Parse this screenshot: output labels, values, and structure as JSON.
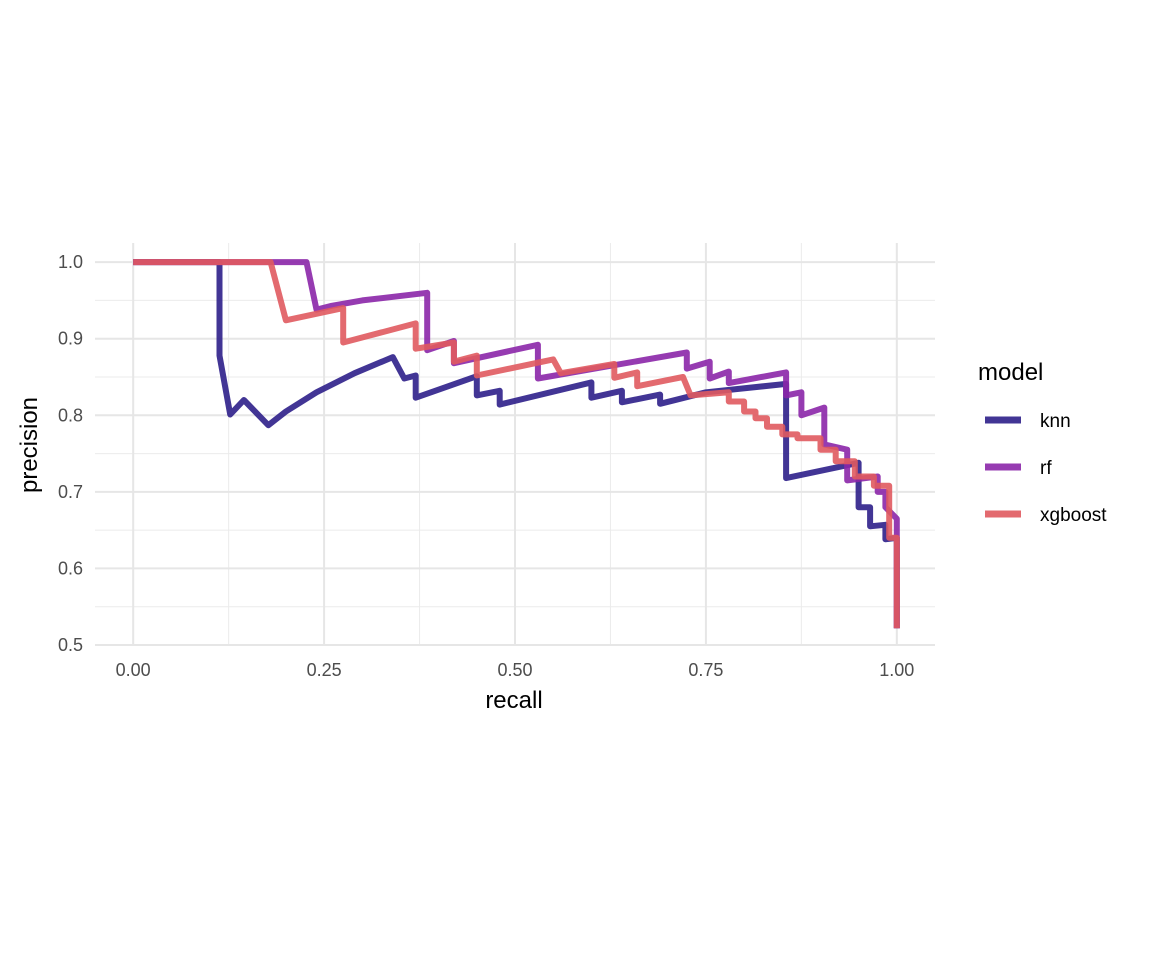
{
  "chart_data": {
    "type": "line",
    "xlabel": "recall",
    "ylabel": "precision",
    "xlim": [
      -0.05,
      1.05
    ],
    "ylim": [
      0.5,
      1.025
    ],
    "x_ticks": [
      0,
      0.25,
      0.5,
      0.75,
      1
    ],
    "x_tick_labels": [
      "0.00",
      "0.25",
      "0.50",
      "0.75",
      "1.00"
    ],
    "y_ticks": [
      0.5,
      0.6,
      0.7,
      0.8,
      0.9,
      1.0
    ],
    "y_tick_labels": [
      "0.5",
      "0.6",
      "0.7",
      "0.8",
      "0.9",
      "1.0"
    ],
    "grid": true,
    "legend": {
      "title": "model",
      "position": "right"
    },
    "series": [
      {
        "name": "knn",
        "color": "#2d1f8a",
        "points": [
          [
            0,
            1.0
          ],
          [
            0.113,
            1.0
          ],
          [
            0.113,
            0.878
          ],
          [
            0.127,
            0.801
          ],
          [
            0.145,
            0.82
          ],
          [
            0.177,
            0.787
          ],
          [
            0.2,
            0.805
          ],
          [
            0.24,
            0.83
          ],
          [
            0.29,
            0.855
          ],
          [
            0.34,
            0.876
          ],
          [
            0.355,
            0.848
          ],
          [
            0.37,
            0.852
          ],
          [
            0.37,
            0.823
          ],
          [
            0.45,
            0.851
          ],
          [
            0.45,
            0.826
          ],
          [
            0.48,
            0.832
          ],
          [
            0.48,
            0.814
          ],
          [
            0.6,
            0.843
          ],
          [
            0.6,
            0.823
          ],
          [
            0.64,
            0.832
          ],
          [
            0.64,
            0.817
          ],
          [
            0.69,
            0.827
          ],
          [
            0.69,
            0.815
          ],
          [
            0.75,
            0.83
          ],
          [
            0.855,
            0.841
          ],
          [
            0.855,
            0.718
          ],
          [
            0.95,
            0.738
          ],
          [
            0.95,
            0.68
          ],
          [
            0.965,
            0.68
          ],
          [
            0.965,
            0.655
          ],
          [
            0.985,
            0.657
          ],
          [
            0.985,
            0.638
          ],
          [
            1.0,
            0.64
          ],
          [
            1.0,
            0.522
          ]
        ]
      },
      {
        "name": "rf",
        "color": "#8b26a8",
        "points": [
          [
            0,
            1.0
          ],
          [
            0.227,
            1.0
          ],
          [
            0.24,
            0.938
          ],
          [
            0.26,
            0.943
          ],
          [
            0.3,
            0.95
          ],
          [
            0.385,
            0.96
          ],
          [
            0.385,
            0.885
          ],
          [
            0.42,
            0.897
          ],
          [
            0.42,
            0.868
          ],
          [
            0.53,
            0.892
          ],
          [
            0.53,
            0.848
          ],
          [
            0.725,
            0.882
          ],
          [
            0.725,
            0.861
          ],
          [
            0.755,
            0.87
          ],
          [
            0.755,
            0.848
          ],
          [
            0.78,
            0.857
          ],
          [
            0.78,
            0.842
          ],
          [
            0.855,
            0.856
          ],
          [
            0.855,
            0.826
          ],
          [
            0.875,
            0.83
          ],
          [
            0.875,
            0.8
          ],
          [
            0.905,
            0.81
          ],
          [
            0.905,
            0.762
          ],
          [
            0.935,
            0.755
          ],
          [
            0.935,
            0.715
          ],
          [
            0.975,
            0.72
          ],
          [
            0.975,
            0.7
          ],
          [
            0.985,
            0.7
          ],
          [
            0.985,
            0.68
          ],
          [
            1.0,
            0.665
          ],
          [
            1.0,
            0.522
          ]
        ]
      },
      {
        "name": "xgboost",
        "color": "#e05a5f",
        "points": [
          [
            0,
            1.0
          ],
          [
            0.18,
            1.0
          ],
          [
            0.2,
            0.924
          ],
          [
            0.275,
            0.94
          ],
          [
            0.275,
            0.895
          ],
          [
            0.37,
            0.92
          ],
          [
            0.37,
            0.887
          ],
          [
            0.42,
            0.895
          ],
          [
            0.42,
            0.87
          ],
          [
            0.45,
            0.878
          ],
          [
            0.45,
            0.852
          ],
          [
            0.55,
            0.873
          ],
          [
            0.56,
            0.855
          ],
          [
            0.63,
            0.867
          ],
          [
            0.63,
            0.849
          ],
          [
            0.66,
            0.856
          ],
          [
            0.66,
            0.838
          ],
          [
            0.72,
            0.85
          ],
          [
            0.73,
            0.826
          ],
          [
            0.78,
            0.83
          ],
          [
            0.78,
            0.818
          ],
          [
            0.8,
            0.818
          ],
          [
            0.8,
            0.805
          ],
          [
            0.815,
            0.805
          ],
          [
            0.815,
            0.796
          ],
          [
            0.83,
            0.796
          ],
          [
            0.83,
            0.785
          ],
          [
            0.85,
            0.785
          ],
          [
            0.85,
            0.775
          ],
          [
            0.87,
            0.775
          ],
          [
            0.87,
            0.77
          ],
          [
            0.9,
            0.77
          ],
          [
            0.9,
            0.755
          ],
          [
            0.92,
            0.755
          ],
          [
            0.92,
            0.74
          ],
          [
            0.945,
            0.74
          ],
          [
            0.945,
            0.72
          ],
          [
            0.97,
            0.72
          ],
          [
            0.97,
            0.708
          ],
          [
            0.99,
            0.708
          ],
          [
            0.99,
            0.64
          ],
          [
            1.0,
            0.64
          ],
          [
            1.0,
            0.522
          ]
        ]
      }
    ]
  }
}
